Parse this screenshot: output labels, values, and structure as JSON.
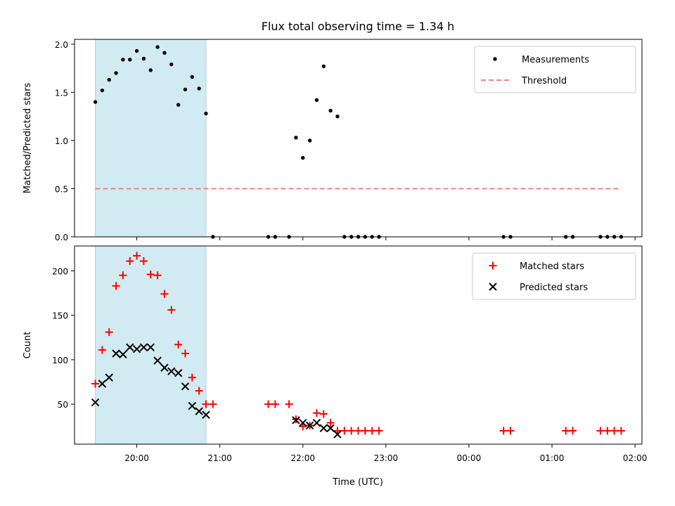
{
  "chart_data": {
    "type": "scatter",
    "title": "Flux total observing time = 1.34 h",
    "shaded_interval": {
      "start": "19:30",
      "end": "20:50",
      "color": "#add8e6"
    },
    "x_axis": {
      "label": "Time (UTC)",
      "range": [
        "19:15",
        "02:05"
      ],
      "ticks": [
        "20:00",
        "21:00",
        "22:00",
        "23:00",
        "00:00",
        "01:00",
        "02:00"
      ],
      "unit": "time of night (UTC), 00:00 onwards is the following day"
    },
    "panels": [
      {
        "name": "ratio",
        "ylabel": "Matched/Predicted stars",
        "ylim": [
          0,
          2.05
        ],
        "yticks": [
          "0.0",
          "0.5",
          "1.0",
          "1.5",
          "2.0"
        ],
        "legend_position": "top-right",
        "series": [
          {
            "name": "Measurements",
            "marker": "dot",
            "color": "#000000",
            "x": [
              "19:30",
              "19:35",
              "19:40",
              "19:45",
              "19:50",
              "19:55",
              "20:00",
              "20:05",
              "20:10",
              "20:15",
              "20:20",
              "20:25",
              "20:30",
              "20:35",
              "20:40",
              "20:45",
              "20:50",
              "20:55",
              "21:35",
              "21:40",
              "21:50",
              "21:55",
              "22:00",
              "22:05",
              "22:10",
              "22:15",
              "22:20",
              "22:25",
              "22:30",
              "22:35",
              "22:40",
              "22:45",
              "22:50",
              "22:55",
              "00:25",
              "00:30",
              "01:10",
              "01:15",
              "01:35",
              "01:40",
              "01:45",
              "01:50"
            ],
            "y": [
              1.4,
              1.52,
              1.63,
              1.7,
              1.84,
              1.84,
              1.93,
              1.85,
              1.73,
              1.97,
              1.91,
              1.79,
              1.37,
              1.53,
              1.66,
              1.54,
              1.28,
              0.0,
              0.0,
              0.0,
              0.0,
              1.03,
              0.82,
              1.0,
              1.42,
              1.77,
              1.31,
              1.25,
              0.0,
              0.0,
              0.0,
              0.0,
              0.0,
              0.0,
              0.0,
              0.0,
              0.0,
              0.0,
              0.0,
              0.0,
              0.0,
              0.0
            ]
          },
          {
            "name": "Threshold",
            "marker": "dashed-line",
            "color": "#f08080",
            "x": [
              "19:30",
              "01:50"
            ],
            "y": [
              0.5,
              0.5
            ]
          }
        ]
      },
      {
        "name": "counts",
        "ylabel": "Count",
        "ylim": [
          5,
          228
        ],
        "yticks": [
          "50",
          "100",
          "150",
          "200"
        ],
        "legend_position": "top-right",
        "series": [
          {
            "name": "Matched stars",
            "marker": "plus",
            "color": "#ff0000",
            "x": [
              "19:30",
              "19:35",
              "19:40",
              "19:45",
              "19:50",
              "19:55",
              "20:00",
              "20:05",
              "20:10",
              "20:15",
              "20:20",
              "20:25",
              "20:30",
              "20:35",
              "20:40",
              "20:45",
              "20:50",
              "20:55",
              "21:35",
              "21:40",
              "21:50",
              "21:55",
              "22:00",
              "22:05",
              "22:10",
              "22:15",
              "22:20",
              "22:25",
              "22:30",
              "22:35",
              "22:40",
              "22:45",
              "22:50",
              "22:55",
              "00:25",
              "00:30",
              "01:10",
              "01:15",
              "01:35",
              "01:40",
              "01:45",
              "01:50"
            ],
            "y": [
              73,
              111,
              131,
              183,
              195,
              211,
              217,
              211,
              196,
              195,
              174,
              156,
              117,
              107,
              80,
              65,
              50,
              50,
              50,
              50,
              50,
              33,
              25,
              26,
              40,
              39,
              29,
              20,
              20,
              20,
              20,
              20,
              20,
              20,
              20,
              20,
              20,
              20,
              20,
              20,
              20,
              20
            ]
          },
          {
            "name": "Predicted stars",
            "marker": "x",
            "color": "#000000",
            "x": [
              "19:30",
              "19:35",
              "19:40",
              "19:45",
              "19:50",
              "19:55",
              "20:00",
              "20:05",
              "20:10",
              "20:15",
              "20:20",
              "20:25",
              "20:30",
              "20:35",
              "20:40",
              "20:45",
              "20:50",
              "21:55",
              "22:00",
              "22:05",
              "22:10",
              "22:15",
              "22:20",
              "22:25"
            ],
            "y": [
              52,
              73,
              80,
              107,
              106,
              114,
              112,
              114,
              114,
              99,
              91,
              87,
              85,
              70,
              48,
              42,
              38,
              32,
              29,
              26,
              29,
              23,
              23,
              16
            ]
          }
        ]
      }
    ]
  }
}
